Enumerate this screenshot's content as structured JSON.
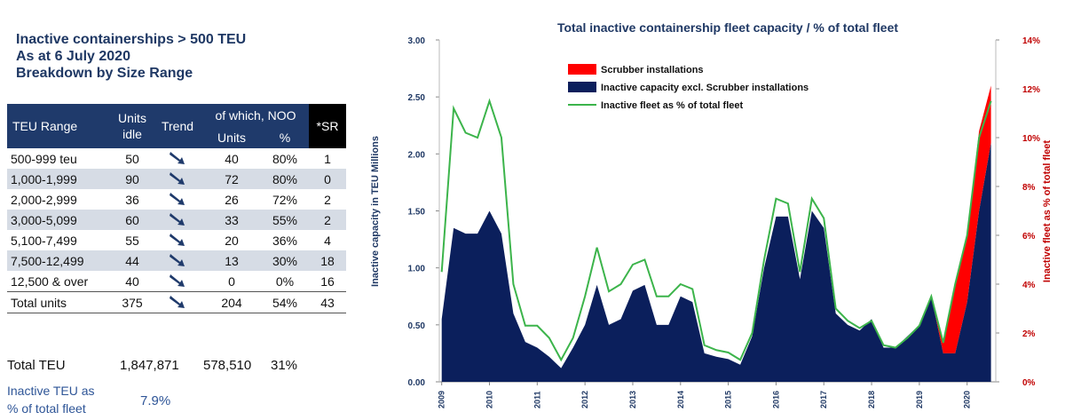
{
  "summary": {
    "title_lines": [
      "Inactive containerships > 500 TEU",
      "As at 6 July 2020",
      "Breakdown by Size Range"
    ]
  },
  "table": {
    "header": {
      "range": "TEU Range",
      "idle": "Units idle",
      "trend": "Trend",
      "noo": "of which, NOO",
      "units": "Units",
      "pct": "%",
      "sr": "*SR"
    },
    "rows": [
      [
        "500-999 teu",
        "50",
        "40",
        "80%",
        "1"
      ],
      [
        "1,000-1,999",
        "90",
        "72",
        "80%",
        "0"
      ],
      [
        "2,000-2,999",
        "36",
        "26",
        "72%",
        "2"
      ],
      [
        "3,000-5,099",
        "60",
        "33",
        "55%",
        "2"
      ],
      [
        "5,100-7,499",
        "55",
        "20",
        "36%",
        "4"
      ],
      [
        "7,500-12,499",
        "44",
        "13",
        "30%",
        "18"
      ],
      [
        "12,500 & over",
        "40",
        "0",
        "0%",
        "16"
      ],
      [
        "Total units",
        "375",
        "204",
        "54%",
        "43"
      ]
    ],
    "total_teu": [
      "Total TEU",
      "1,847,871",
      "578,510",
      "31%"
    ],
    "inactive_share": {
      "label_lines": [
        "Inactive TEU as",
        "% of total fleet"
      ],
      "value": "7.9%"
    }
  },
  "chart_data": {
    "type": "area",
    "title": "Total inactive containership fleet capacity / % of total fleet",
    "y_label": "Inactive capacity in TEU Millions",
    "y2_label": "Inactive fleet as % of total fleet",
    "x": [
      2009.0,
      2009.25,
      2009.5,
      2009.75,
      2010.0,
      2010.25,
      2010.5,
      2010.75,
      2011.0,
      2011.25,
      2011.5,
      2011.75,
      2012.0,
      2012.25,
      2012.5,
      2012.75,
      2013.0,
      2013.25,
      2013.5,
      2013.75,
      2014.0,
      2014.25,
      2014.5,
      2014.75,
      2015.0,
      2015.25,
      2015.5,
      2015.75,
      2016.0,
      2016.25,
      2016.5,
      2016.75,
      2017.0,
      2017.25,
      2017.5,
      2017.75,
      2018.0,
      2018.25,
      2018.5,
      2018.75,
      2019.0,
      2019.25,
      2019.5,
      2019.75,
      2020.0,
      2020.25,
      2020.5
    ],
    "xlim": [
      2008.95,
      2020.6
    ],
    "xticks": [
      2009,
      2010,
      2011,
      2012,
      2013,
      2014,
      2015,
      2016,
      2017,
      2018,
      2019,
      2020
    ],
    "ylim": [
      0,
      3
    ],
    "yticks": [
      {
        "value": 0,
        "label": "0.00"
      },
      {
        "value": 0.5,
        "label": "0.50"
      },
      {
        "value": 1,
        "label": "1.00"
      },
      {
        "value": 1.5,
        "label": "1.50"
      },
      {
        "value": 2,
        "label": "2.00"
      },
      {
        "value": 2.5,
        "label": "2.50"
      },
      {
        "value": 3,
        "label": "3.00"
      }
    ],
    "y2lim": [
      0,
      14
    ],
    "y2ticks": [
      {
        "value": 0,
        "label": "0%"
      },
      {
        "value": 2,
        "label": "2%"
      },
      {
        "value": 4,
        "label": "4%"
      },
      {
        "value": 6,
        "label": "6%"
      },
      {
        "value": 8,
        "label": "8%"
      },
      {
        "value": 10,
        "label": "10%"
      },
      {
        "value": 12,
        "label": "12%"
      },
      {
        "value": 14,
        "label": "14%"
      }
    ],
    "series": [
      {
        "name": "Scrubber installations",
        "color": "#ff0000",
        "stack": true,
        "values": [
          0,
          0,
          0,
          0,
          0,
          0,
          0,
          0,
          0,
          0,
          0,
          0,
          0,
          0,
          0,
          0,
          0,
          0,
          0,
          0,
          0,
          0,
          0,
          0,
          0,
          0,
          0,
          0,
          0,
          0,
          0,
          0,
          0,
          0,
          0,
          0,
          0,
          0,
          0,
          0,
          0,
          0,
          0.1,
          0.6,
          0.6,
          0.7,
          0.5
        ]
      },
      {
        "name": "Inactive capacity excl. Scrubber installations",
        "color": "#0b1f5c",
        "values": [
          0.55,
          1.35,
          1.3,
          1.3,
          1.5,
          1.3,
          0.6,
          0.35,
          0.3,
          0.22,
          0.12,
          0.3,
          0.5,
          0.85,
          0.5,
          0.55,
          0.8,
          0.85,
          0.5,
          0.5,
          0.75,
          0.7,
          0.25,
          0.22,
          0.2,
          0.15,
          0.4,
          1.0,
          1.45,
          1.45,
          0.9,
          1.5,
          1.35,
          0.6,
          0.5,
          0.45,
          0.55,
          0.3,
          0.3,
          0.4,
          0.5,
          0.75,
          0.25,
          0.25,
          0.7,
          1.5,
          2.1
        ]
      },
      {
        "name": "Inactive fleet as % of total fleet",
        "color": "#3cb44b",
        "axis": "y2",
        "values": [
          4.5,
          11.2,
          10.2,
          10.0,
          11.5,
          10.0,
          4.0,
          2.3,
          2.3,
          1.8,
          0.9,
          1.8,
          3.5,
          5.5,
          3.7,
          4.0,
          4.8,
          5.0,
          3.5,
          3.5,
          4.0,
          3.8,
          1.5,
          1.3,
          1.2,
          0.9,
          2.0,
          5.0,
          7.5,
          7.3,
          4.5,
          7.5,
          6.7,
          3.0,
          2.5,
          2.2,
          2.5,
          1.5,
          1.4,
          1.8,
          2.3,
          3.5,
          1.6,
          4.0,
          6.0,
          10.0,
          11.5
        ]
      }
    ]
  }
}
